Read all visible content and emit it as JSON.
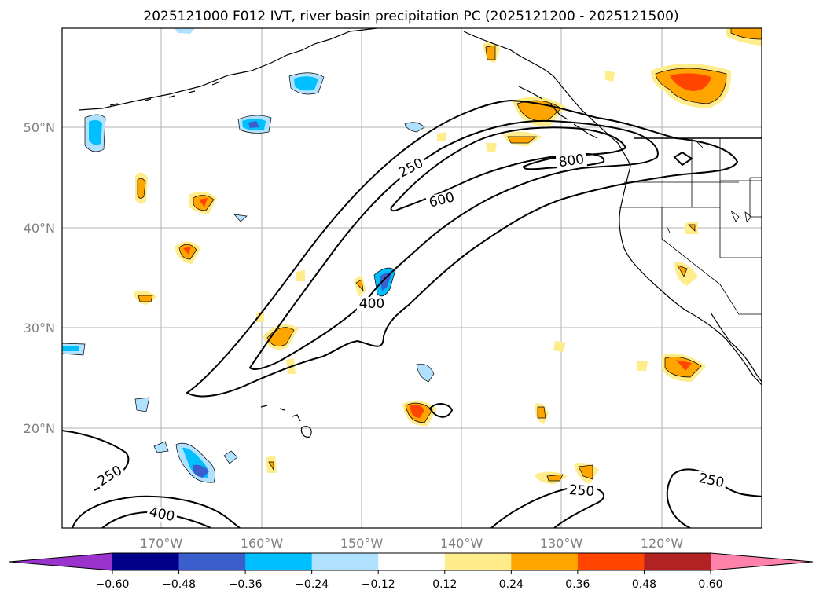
{
  "title": "2025121000 F012 IVT, river basin precipitation PC (2025121200 - 2025121500)",
  "map": {
    "latitude_labels": [
      "50°N",
      "40°N",
      "30°N",
      "20°N"
    ],
    "longitude_labels": [
      "170°W",
      "160°W",
      "150°W",
      "140°W",
      "130°W",
      "120°W"
    ],
    "ivt_contour_labels": [
      "250",
      "800",
      "600",
      "400",
      "250",
      "400",
      "250",
      "250"
    ],
    "grid": true
  },
  "colorbar": {
    "ticks": [
      "−0.60",
      "−0.48",
      "−0.36",
      "−0.24",
      "−0.12",
      "0.12",
      "0.24",
      "0.36",
      "0.48",
      "0.60"
    ],
    "colors": [
      "#9933cc",
      "#00008b",
      "#3a5fcd",
      "#00bfff",
      "#b0e2ff",
      "#ffffff",
      "#ffec8b",
      "#ffa500",
      "#ff4500",
      "#b22222",
      "#ff82ab"
    ],
    "extend": "both"
  }
}
